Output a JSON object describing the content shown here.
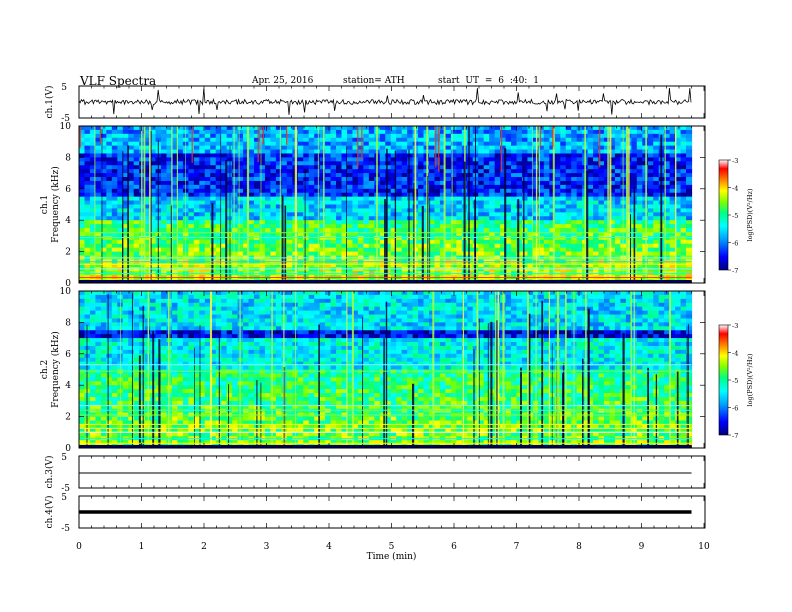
{
  "header": {
    "title": "VLF Spectra",
    "date": "Apr. 25, 2016",
    "station": "station= ATH",
    "start": "start UT = 6 :40: 1"
  },
  "chart_data": [
    {
      "type": "line",
      "panel": "ch1-waveform",
      "ylabel": "ch.1(V)",
      "ylim": [
        -5,
        5
      ],
      "yticks": [
        "5",
        "-5"
      ],
      "baseline": 0,
      "note": "noisy waveform with sferic spikes around the zero line"
    },
    {
      "type": "heatmap",
      "panel": "ch1-spectrogram",
      "ylabel": "ch.1 Frequency (kHz)",
      "ylim": [
        0,
        10
      ],
      "yticks": [
        "0",
        "2",
        "4",
        "6",
        "8",
        "10"
      ],
      "xlim": [
        0,
        9.8
      ],
      "colorbar": {
        "label": "log(PSD)(V²/Hz)",
        "min": -7,
        "max": -3,
        "ticks": [
          "-3",
          "-4",
          "-5",
          "-6",
          "-7"
        ]
      }
    },
    {
      "type": "heatmap",
      "panel": "ch2-spectrogram",
      "ylabel": "ch.2 Frequency (kHz)",
      "ylim": [
        0,
        10
      ],
      "yticks": [
        "0",
        "2",
        "4",
        "6",
        "8",
        "10"
      ],
      "xlim": [
        0,
        9.8
      ],
      "colorbar": {
        "label": "log(PSD)(V²/Hz)",
        "min": -7,
        "max": -3,
        "ticks": [
          "-3",
          "-4",
          "-5",
          "-6",
          "-7"
        ]
      }
    },
    {
      "type": "line",
      "panel": "ch3-waveform",
      "ylabel": "ch.3(V)",
      "ylim": [
        -5,
        5
      ],
      "yticks": [
        "5",
        "-5"
      ],
      "baseline": 0,
      "note": "flat line near zero"
    },
    {
      "type": "line",
      "panel": "ch4-waveform",
      "ylabel": "ch.4(V)",
      "ylim": [
        -5,
        5
      ],
      "yticks": [
        "5",
        "-5"
      ],
      "baseline": 0,
      "note": "thick flat line near zero"
    }
  ],
  "x_axis": {
    "label": "Time (min)",
    "ticks": [
      "0",
      "1",
      "2",
      "3",
      "4",
      "5",
      "6",
      "7",
      "8",
      "9",
      "10"
    ],
    "range": [
      0,
      10
    ]
  },
  "colors": {
    "colormap": [
      "#000080",
      "#0000ff",
      "#00a0ff",
      "#00ffff",
      "#00ff80",
      "#80ff00",
      "#ffff00",
      "#ff8000",
      "#ff0000",
      "#ffffff"
    ]
  }
}
